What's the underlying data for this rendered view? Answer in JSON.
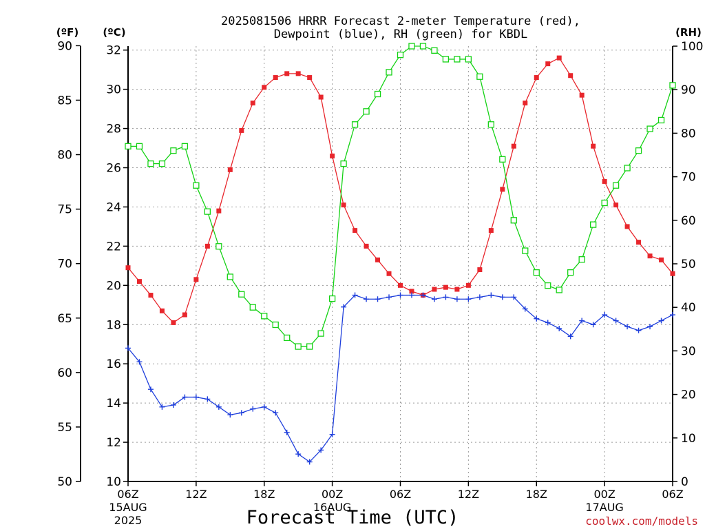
{
  "chart_data": {
    "type": "line",
    "title_line1": "2025081506 HRRR Forecast 2-meter Temperature (red),",
    "title_line2": "Dewpoint (blue), RH (green) for KBDL",
    "xlabel": "Forecast Time (UTC)",
    "credit": "coolwx.com/models",
    "unit_f": "(ºF)",
    "unit_c": "(ºC)",
    "unit_rh": "(RH)",
    "x_range_hours": [
      0,
      48
    ],
    "c_range": [
      10,
      32.2
    ],
    "rh_range": [
      0,
      100
    ],
    "f_ticks": [
      "50",
      "55",
      "60",
      "65",
      "70",
      "75",
      "80",
      "85",
      "90"
    ],
    "c_ticks": [
      "10",
      "12",
      "14",
      "16",
      "18",
      "20",
      "22",
      "24",
      "26",
      "28",
      "30",
      "32"
    ],
    "rh_ticks": [
      "0",
      "10",
      "20",
      "30",
      "40",
      "50",
      "60",
      "70",
      "80",
      "90",
      "100"
    ],
    "x_ticks": [
      {
        "label": "06Z",
        "sub1": "15AUG",
        "sub2": "2025"
      },
      {
        "label": "12Z",
        "sub1": "",
        "sub2": ""
      },
      {
        "label": "18Z",
        "sub1": "",
        "sub2": ""
      },
      {
        "label": "00Z",
        "sub1": "16AUG",
        "sub2": ""
      },
      {
        "label": "06Z",
        "sub1": "",
        "sub2": ""
      },
      {
        "label": "12Z",
        "sub1": "",
        "sub2": ""
      },
      {
        "label": "18Z",
        "sub1": "",
        "sub2": ""
      },
      {
        "label": "00Z",
        "sub1": "17AUG",
        "sub2": ""
      },
      {
        "label": "06Z",
        "sub1": "",
        "sub2": ""
      }
    ],
    "series": [
      {
        "name": "Temperature",
        "color": "#e8262c",
        "marker": "filled-square",
        "axis": "celsius",
        "values": [
          20.9,
          20.2,
          19.5,
          18.7,
          18.1,
          18.5,
          20.3,
          22.0,
          23.8,
          25.9,
          27.9,
          29.3,
          30.1,
          30.6,
          30.8,
          30.8,
          30.6,
          29.6,
          26.6,
          24.1,
          22.8,
          22.0,
          21.3,
          20.6,
          20.0,
          19.7,
          19.5,
          19.8,
          19.9,
          19.8,
          20.0,
          20.8,
          22.8,
          24.9,
          27.1,
          29.3,
          30.6,
          31.3,
          31.6,
          30.7,
          29.7,
          27.1,
          25.3,
          24.1,
          23.0,
          22.2,
          21.5,
          21.3,
          20.6
        ]
      },
      {
        "name": "Dewpoint",
        "color": "#1f3fdc",
        "marker": "plus",
        "axis": "celsius",
        "values": [
          16.8,
          16.1,
          14.7,
          13.8,
          13.9,
          14.3,
          14.3,
          14.2,
          13.8,
          13.4,
          13.5,
          13.7,
          13.8,
          13.5,
          12.5,
          11.4,
          11.0,
          11.6,
          12.4,
          18.9,
          19.5,
          19.3,
          19.3,
          19.4,
          19.5,
          19.5,
          19.5,
          19.3,
          19.4,
          19.3,
          19.3,
          19.4,
          19.5,
          19.4,
          19.4,
          18.8,
          18.3,
          18.1,
          17.8,
          17.4,
          18.2,
          18.0,
          18.5,
          18.2,
          17.9,
          17.7,
          17.9,
          18.2,
          18.5
        ]
      },
      {
        "name": "RH",
        "color": "#14d214",
        "marker": "open-square",
        "axis": "rh",
        "values": [
          77,
          77,
          73,
          73,
          76,
          77,
          68,
          62,
          54,
          47,
          43,
          40,
          38,
          36,
          33,
          31,
          31,
          34,
          42,
          73,
          82,
          85,
          89,
          94,
          98,
          100,
          100,
          99,
          97,
          97,
          97,
          93,
          82,
          74,
          60,
          53,
          48,
          45,
          44,
          48,
          51,
          59,
          64,
          68,
          72,
          76,
          81,
          83,
          91
        ]
      }
    ]
  }
}
